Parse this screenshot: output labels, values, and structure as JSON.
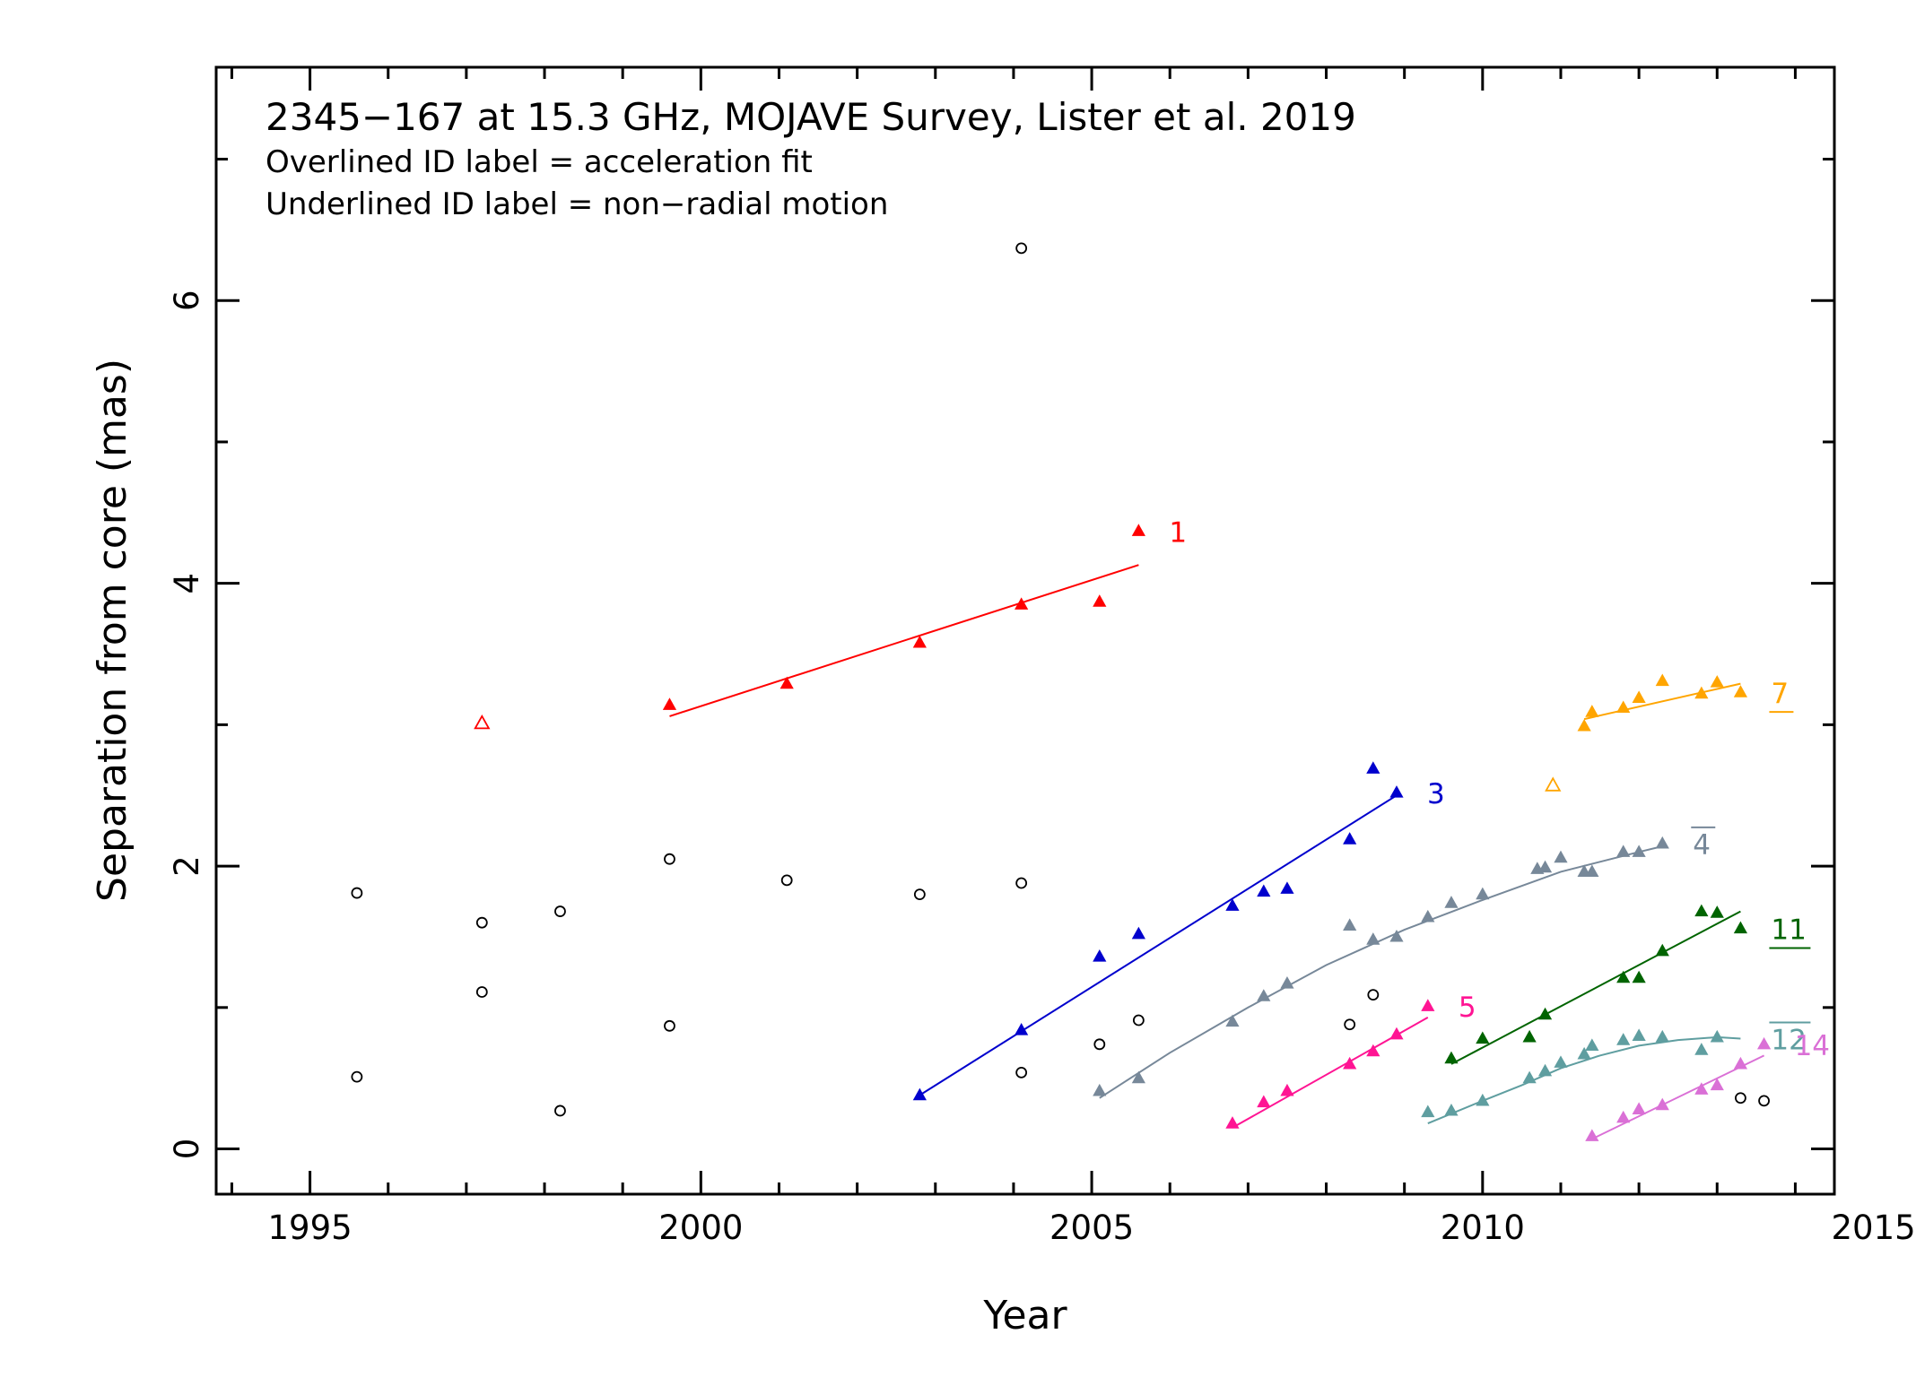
{
  "chart_data": {
    "type": "scatter",
    "title": "2345−167 at 15.3 GHz, MOJAVE Survey, Lister et al. 2019",
    "notes": [
      "Overlined ID label = acceleration fit",
      "Underlined ID label = non−radial motion"
    ],
    "xlabel": "Year",
    "ylabel": "Separation from core (mas)",
    "xlim": [
      1993.8,
      2014.5
    ],
    "ylim": [
      -0.32,
      7.65
    ],
    "xticks": [
      1995,
      2000,
      2005,
      2010,
      2015
    ],
    "yticks": [
      0,
      2,
      4,
      6
    ],
    "grid": false,
    "legend": "none",
    "unfit_points": {
      "marker": "open-circle",
      "color": "#000000",
      "points": [
        [
          1995.6,
          1.81
        ],
        [
          1995.6,
          0.51
        ],
        [
          1997.2,
          1.6
        ],
        [
          1997.2,
          1.11
        ],
        [
          1998.2,
          1.68
        ],
        [
          1998.2,
          0.27
        ],
        [
          1999.6,
          2.05
        ],
        [
          1999.6,
          0.87
        ],
        [
          2001.1,
          1.9
        ],
        [
          2002.8,
          1.8
        ],
        [
          2004.1,
          6.37
        ],
        [
          2004.1,
          1.88
        ],
        [
          2004.1,
          0.54
        ],
        [
          2005.1,
          0.74
        ],
        [
          2005.6,
          0.91
        ],
        [
          2008.3,
          0.88
        ],
        [
          2008.6,
          1.09
        ],
        [
          2013.3,
          0.36
        ],
        [
          2013.6,
          0.34
        ]
      ]
    },
    "series": [
      {
        "name": "1",
        "color": "#ff0000",
        "label_style": "plain",
        "points": [
          [
            1999.6,
            3.14
          ],
          [
            2001.1,
            3.29
          ],
          [
            2002.8,
            3.58
          ],
          [
            2004.1,
            3.85
          ],
          [
            2005.1,
            3.87
          ],
          [
            2005.6,
            4.37
          ]
        ],
        "open_points": [
          [
            1997.2,
            3.01
          ]
        ],
        "fit": [
          [
            1999.6,
            3.06
          ],
          [
            2005.6,
            4.13
          ]
        ]
      },
      {
        "name": "3",
        "color": "#0000cd",
        "label_style": "plain",
        "points": [
          [
            2002.8,
            0.38
          ],
          [
            2004.1,
            0.84
          ],
          [
            2005.1,
            1.36
          ],
          [
            2005.6,
            1.52
          ],
          [
            2006.8,
            1.72
          ],
          [
            2007.2,
            1.82
          ],
          [
            2007.5,
            1.84
          ],
          [
            2008.3,
            2.19
          ],
          [
            2008.6,
            2.69
          ],
          [
            2008.9,
            2.52
          ]
        ],
        "fit": [
          [
            2002.8,
            0.38
          ],
          [
            2008.9,
            2.5
          ]
        ]
      },
      {
        "name": "4",
        "color": "#778899",
        "label_style": "overline",
        "points": [
          [
            2005.1,
            0.41
          ],
          [
            2005.6,
            0.5
          ],
          [
            2006.8,
            0.9
          ],
          [
            2007.2,
            1.08
          ],
          [
            2007.5,
            1.17
          ],
          [
            2008.3,
            1.58
          ],
          [
            2008.6,
            1.48
          ],
          [
            2008.9,
            1.5
          ],
          [
            2009.3,
            1.64
          ],
          [
            2009.6,
            1.74
          ],
          [
            2010.0,
            1.8
          ],
          [
            2010.7,
            1.98
          ],
          [
            2010.8,
            1.99
          ],
          [
            2011.0,
            2.06
          ],
          [
            2011.3,
            1.96
          ],
          [
            2011.4,
            1.96
          ],
          [
            2011.8,
            2.1
          ],
          [
            2012.0,
            2.1
          ],
          [
            2012.3,
            2.16
          ]
        ],
        "fit": [
          [
            2005.1,
            0.36
          ],
          [
            2006.0,
            0.68
          ],
          [
            2007.0,
            1.0
          ],
          [
            2008.0,
            1.3
          ],
          [
            2009.0,
            1.55
          ],
          [
            2010.0,
            1.76
          ],
          [
            2011.0,
            1.96
          ],
          [
            2012.0,
            2.1
          ],
          [
            2012.3,
            2.14
          ]
        ]
      },
      {
        "name": "5",
        "color": "#ff1493",
        "label_style": "plain",
        "points": [
          [
            2006.8,
            0.18
          ],
          [
            2007.2,
            0.33
          ],
          [
            2007.5,
            0.41
          ],
          [
            2008.3,
            0.6
          ],
          [
            2008.6,
            0.69
          ],
          [
            2008.9,
            0.81
          ],
          [
            2009.3,
            1.01
          ]
        ],
        "fit": [
          [
            2006.8,
            0.15
          ],
          [
            2009.3,
            0.93
          ]
        ]
      },
      {
        "name": "7",
        "color": "#ffa500",
        "label_style": "underline",
        "points": [
          [
            2011.3,
            2.99
          ],
          [
            2011.4,
            3.09
          ],
          [
            2011.8,
            3.12
          ],
          [
            2012.0,
            3.19
          ],
          [
            2012.3,
            3.31
          ],
          [
            2012.8,
            3.22
          ],
          [
            2013.0,
            3.3
          ],
          [
            2013.3,
            3.23
          ]
        ],
        "open_points": [
          [
            2010.9,
            2.57
          ]
        ],
        "fit": [
          [
            2011.3,
            3.04
          ],
          [
            2013.3,
            3.29
          ]
        ]
      },
      {
        "name": "11",
        "color": "#006400",
        "label_style": "underline",
        "points": [
          [
            2009.6,
            0.64
          ],
          [
            2010.0,
            0.78
          ],
          [
            2010.6,
            0.79
          ],
          [
            2010.8,
            0.95
          ],
          [
            2011.8,
            1.21
          ],
          [
            2012.0,
            1.21
          ],
          [
            2012.3,
            1.4
          ],
          [
            2012.8,
            1.68
          ],
          [
            2013.0,
            1.67
          ],
          [
            2013.3,
            1.56
          ]
        ],
        "fit": [
          [
            2009.6,
            0.6
          ],
          [
            2013.3,
            1.68
          ]
        ]
      },
      {
        "name": "12",
        "color": "#5f9ea0",
        "label_style": "overline",
        "points": [
          [
            2009.3,
            0.26
          ],
          [
            2009.6,
            0.27
          ],
          [
            2010.0,
            0.34
          ],
          [
            2010.6,
            0.5
          ],
          [
            2010.8,
            0.55
          ],
          [
            2011.0,
            0.61
          ],
          [
            2011.3,
            0.67
          ],
          [
            2011.4,
            0.73
          ],
          [
            2011.8,
            0.77
          ],
          [
            2012.0,
            0.8
          ],
          [
            2012.3,
            0.79
          ],
          [
            2012.8,
            0.7
          ],
          [
            2013.0,
            0.79
          ]
        ],
        "fit": [
          [
            2009.3,
            0.18
          ],
          [
            2010.0,
            0.34
          ],
          [
            2010.5,
            0.45
          ],
          [
            2011.0,
            0.57
          ],
          [
            2011.5,
            0.66
          ],
          [
            2012.0,
            0.73
          ],
          [
            2012.5,
            0.77
          ],
          [
            2013.0,
            0.79
          ],
          [
            2013.3,
            0.78
          ]
        ]
      },
      {
        "name": "14",
        "color": "#da70d6",
        "label_style": "plain",
        "points": [
          [
            2011.4,
            0.09
          ],
          [
            2011.8,
            0.22
          ],
          [
            2012.0,
            0.28
          ],
          [
            2012.3,
            0.31
          ],
          [
            2012.8,
            0.42
          ],
          [
            2013.0,
            0.45
          ],
          [
            2013.3,
            0.6
          ],
          [
            2013.6,
            0.74
          ]
        ],
        "fit": [
          [
            2011.4,
            0.07
          ],
          [
            2013.6,
            0.66
          ]
        ]
      }
    ]
  }
}
